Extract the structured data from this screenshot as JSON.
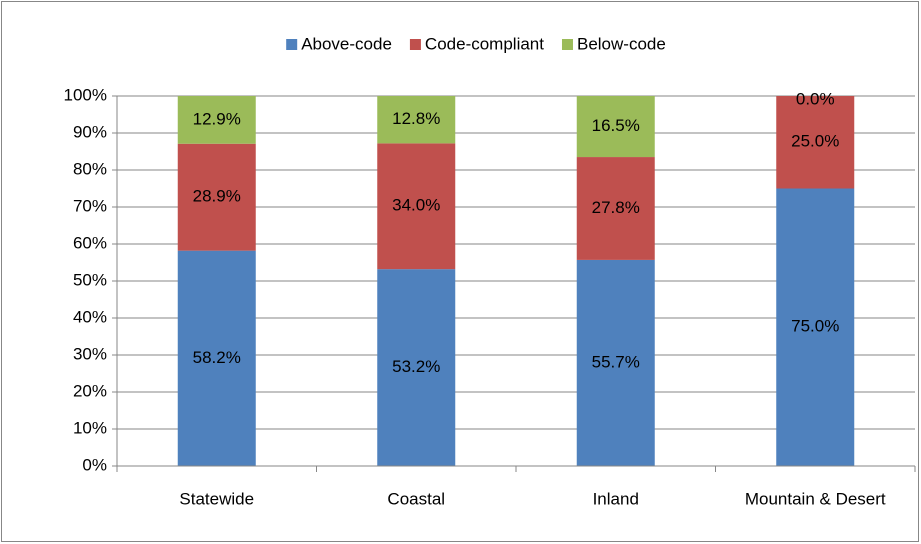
{
  "chart_data": {
    "type": "stacked_bar",
    "categories": [
      "Statewide",
      "Coastal",
      "Inland",
      "Mountain & Desert"
    ],
    "series": [
      {
        "name": "Above-code",
        "color": "#4f81bd",
        "values": [
          58.2,
          53.2,
          55.7,
          75.0
        ],
        "value_labels": [
          "58.2%",
          "53.2%",
          "55.7%",
          "75.0%"
        ]
      },
      {
        "name": "Code-compliant",
        "color": "#c0504d",
        "values": [
          28.9,
          34.0,
          27.8,
          25.0
        ],
        "value_labels": [
          "28.9%",
          "34.0%",
          "27.8%",
          "25.0%"
        ]
      },
      {
        "name": "Below-code",
        "color": "#9bbb59",
        "values": [
          12.9,
          12.8,
          16.5,
          0.0
        ],
        "value_labels": [
          "12.9%",
          "12.8%",
          "16.5%",
          "0.0%"
        ]
      }
    ],
    "ylim": [
      0,
      100
    ],
    "yticks": [
      {
        "value": 0,
        "label": "0%"
      },
      {
        "value": 10,
        "label": "10%"
      },
      {
        "value": 20,
        "label": "20%"
      },
      {
        "value": 30,
        "label": "30%"
      },
      {
        "value": 40,
        "label": "40%"
      },
      {
        "value": 50,
        "label": "50%"
      },
      {
        "value": 60,
        "label": "60%"
      },
      {
        "value": 70,
        "label": "70%"
      },
      {
        "value": 80,
        "label": "80%"
      },
      {
        "value": 90,
        "label": "90%"
      },
      {
        "value": 100,
        "label": "100%"
      }
    ],
    "grid": true,
    "legend": "top"
  }
}
